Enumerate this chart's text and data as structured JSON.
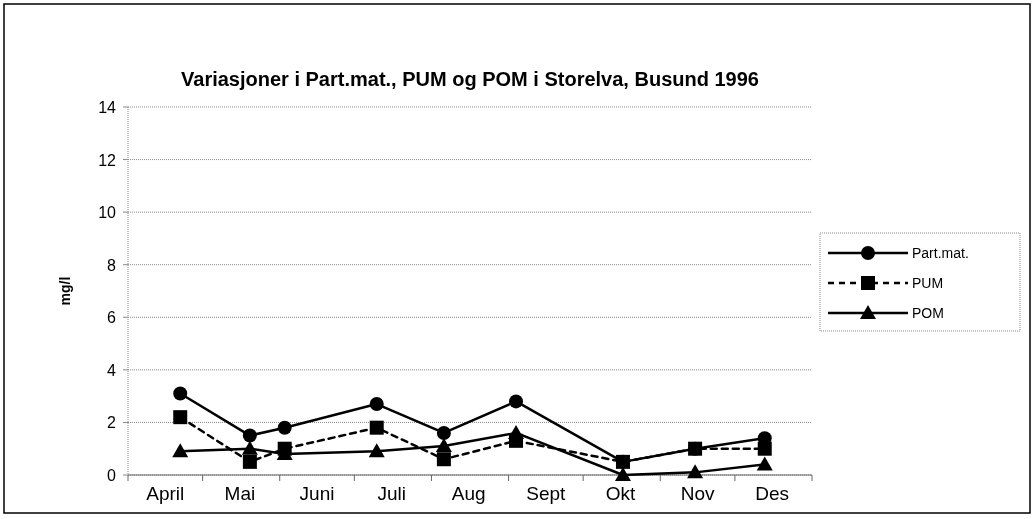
{
  "chart_data": {
    "type": "line",
    "title": "Variasjoner i Part.mat., PUM og POM i Storelva, Busund 1996",
    "ylabel": "mg/l",
    "x": [
      "1996-04-22",
      "1996-05-20",
      "1996-06-03",
      "1996-07-10",
      "1996-08-06",
      "1996-09-04",
      "1996-10-17",
      "1996-11-15",
      "1996-12-13"
    ],
    "series": [
      {
        "name": "Part.mat.",
        "color": "#000000",
        "marker": "circle",
        "line_style": "solid",
        "values": [
          3.1,
          1.5,
          1.8,
          2.7,
          1.6,
          2.8,
          0.5,
          1.0,
          1.4
        ]
      },
      {
        "name": "PUM",
        "color": "#000000",
        "marker": "square",
        "line_style": "dashed",
        "values": [
          2.2,
          0.5,
          1.0,
          1.8,
          0.6,
          1.3,
          0.5,
          1.0,
          1.0
        ]
      },
      {
        "name": "POM",
        "color": "#000000",
        "marker": "triangle",
        "line_style": "solid",
        "values": [
          0.9,
          1.0,
          0.8,
          0.9,
          1.1,
          1.6,
          0.0,
          0.1,
          0.4
        ]
      }
    ],
    "xlim": [
      "1996-04-01",
      "1997-01-01"
    ],
    "xticks": [
      {
        "value": "1996-04-01",
        "label": null
      },
      {
        "value": "1996-04-16",
        "label": "April"
      },
      {
        "value": "1996-05-01",
        "label": null
      },
      {
        "value": "1996-05-16",
        "label": "Mai"
      },
      {
        "value": "1996-06-01",
        "label": null
      },
      {
        "value": "1996-06-16",
        "label": "Juni"
      },
      {
        "value": "1996-07-01",
        "label": null
      },
      {
        "value": "1996-07-16",
        "label": "Juli"
      },
      {
        "value": "1996-08-01",
        "label": null
      },
      {
        "value": "1996-08-16",
        "label": "Aug"
      },
      {
        "value": "1996-09-01",
        "label": null
      },
      {
        "value": "1996-09-16",
        "label": "Sept"
      },
      {
        "value": "1996-10-01",
        "label": null
      },
      {
        "value": "1996-10-16",
        "label": "Okt"
      },
      {
        "value": "1996-11-01",
        "label": null
      },
      {
        "value": "1996-11-16",
        "label": "Nov"
      },
      {
        "value": "1996-12-01",
        "label": null
      },
      {
        "value": "1996-12-16",
        "label": "Des"
      },
      {
        "value": "1997-01-01",
        "label": null
      }
    ],
    "ylim": [
      0,
      14
    ],
    "yticks": [
      0,
      2,
      4,
      6,
      8,
      10,
      12,
      14
    ],
    "grid": "y",
    "legend": "right"
  }
}
